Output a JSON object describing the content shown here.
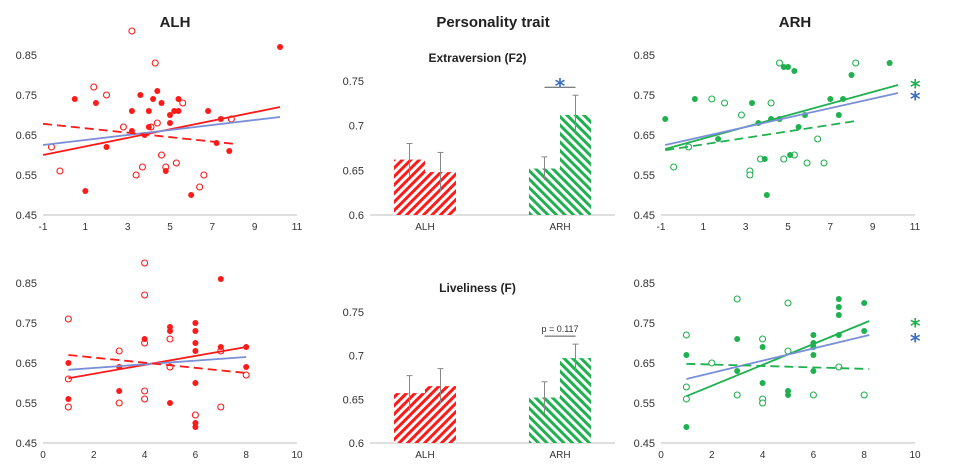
{
  "headers": {
    "left": "ALH",
    "middle": "Personality trait",
    "right": "ARH"
  },
  "colors": {
    "red": "#ff1a1a",
    "green": "#1fb04f",
    "blue": "#7b8fd8",
    "star_blue": "#3a6fc4",
    "axis": "#bfbfbf"
  },
  "chart_data": [
    {
      "id": "scatter-alh-top",
      "type": "scatter",
      "color": "red",
      "xlim": [
        -1,
        11
      ],
      "xticks": [
        -1,
        1,
        3,
        5,
        7,
        9,
        11
      ],
      "ylim": [
        0.45,
        0.85
      ],
      "yticks": [
        0.45,
        0.55,
        0.65,
        0.75,
        0.85
      ],
      "filled": [
        [
          1,
          0.51
        ],
        [
          0.5,
          0.74
        ],
        [
          1.5,
          0.73
        ],
        [
          2,
          0.62
        ],
        [
          3.2,
          0.66
        ],
        [
          3.2,
          0.71
        ],
        [
          3.6,
          0.75
        ],
        [
          3.8,
          0.65
        ],
        [
          4,
          0.67
        ],
        [
          4,
          0.71
        ],
        [
          4.2,
          0.74
        ],
        [
          4.4,
          0.76
        ],
        [
          4.6,
          0.73
        ],
        [
          4.8,
          0.56
        ],
        [
          5,
          0.68
        ],
        [
          5,
          0.7
        ],
        [
          5.2,
          0.71
        ],
        [
          5.4,
          0.74
        ],
        [
          5.4,
          0.71
        ],
        [
          6,
          0.5
        ],
        [
          6.8,
          0.71
        ],
        [
          7.2,
          0.63
        ],
        [
          7.4,
          0.69
        ],
        [
          7.8,
          0.61
        ],
        [
          10.2,
          0.87
        ]
      ],
      "open": [
        [
          -0.6,
          0.62
        ],
        [
          -0.2,
          0.56
        ],
        [
          1.4,
          0.77
        ],
        [
          2,
          0.75
        ],
        [
          2.8,
          0.67
        ],
        [
          3.2,
          0.91
        ],
        [
          3.4,
          0.55
        ],
        [
          3.7,
          0.57
        ],
        [
          4.1,
          0.67
        ],
        [
          4.3,
          0.83
        ],
        [
          4.4,
          0.68
        ],
        [
          4.6,
          0.6
        ],
        [
          4.8,
          0.57
        ],
        [
          5.3,
          0.58
        ],
        [
          5.6,
          0.73
        ],
        [
          6.4,
          0.52
        ],
        [
          6.6,
          0.55
        ],
        [
          7.9,
          0.69
        ]
      ],
      "fits": [
        {
          "color": "red",
          "style": "solid",
          "x": [
            -1,
            10.2
          ],
          "y": [
            0.6,
            0.72
          ]
        },
        {
          "color": "blue",
          "style": "solid",
          "x": [
            -1,
            10.2
          ],
          "y": [
            0.625,
            0.695
          ]
        },
        {
          "color": "red",
          "style": "dashed",
          "x": [
            -1,
            8
          ],
          "y": [
            0.678,
            0.628
          ]
        }
      ]
    },
    {
      "id": "bar-extraversion",
      "type": "bar",
      "title": "Extraversion (F2)",
      "groups": [
        "ALH",
        "ARH"
      ],
      "ylim": [
        0.6,
        0.76
      ],
      "yticks": [
        0.6,
        0.65,
        0.7,
        0.75
      ],
      "series": [
        {
          "color": "red",
          "group": "ALH",
          "values": [
            0.662,
            0.648
          ],
          "errors": [
            0.018,
            0.022
          ]
        },
        {
          "color": "green",
          "group": "ARH",
          "values": [
            0.652,
            0.712
          ],
          "errors": [
            0.013,
            0.022
          ]
        }
      ],
      "annotation": {
        "group": "ARH",
        "label": "*",
        "color": "star_blue"
      }
    },
    {
      "id": "scatter-arh-top",
      "type": "scatter",
      "color": "green",
      "xlim": [
        -1,
        11
      ],
      "xticks": [
        -1,
        1,
        3,
        5,
        7,
        9,
        11
      ],
      "ylim": [
        0.45,
        0.85
      ],
      "yticks": [
        0.45,
        0.55,
        0.65,
        0.75,
        0.85
      ],
      "filled": [
        [
          -0.8,
          0.69
        ],
        [
          0.6,
          0.74
        ],
        [
          1.7,
          0.64
        ],
        [
          3.3,
          0.73
        ],
        [
          3.6,
          0.68
        ],
        [
          3.9,
          0.59
        ],
        [
          4,
          0.5
        ],
        [
          4.2,
          0.69
        ],
        [
          4.6,
          0.69
        ],
        [
          4.8,
          0.82
        ],
        [
          5,
          0.82
        ],
        [
          5.1,
          0.6
        ],
        [
          5.3,
          0.81
        ],
        [
          5.5,
          0.67
        ],
        [
          5.8,
          0.7
        ],
        [
          7,
          0.74
        ],
        [
          7.4,
          0.7
        ],
        [
          7.6,
          0.74
        ],
        [
          8,
          0.8
        ],
        [
          9.8,
          0.83
        ]
      ],
      "open": [
        [
          -0.4,
          0.57
        ],
        [
          0.3,
          0.62
        ],
        [
          1.4,
          0.74
        ],
        [
          2,
          0.73
        ],
        [
          2.8,
          0.7
        ],
        [
          3.2,
          0.56
        ],
        [
          3.2,
          0.55
        ],
        [
          3.7,
          0.59
        ],
        [
          4.2,
          0.73
        ],
        [
          4.6,
          0.83
        ],
        [
          4.8,
          0.59
        ],
        [
          5.3,
          0.6
        ],
        [
          5.9,
          0.58
        ],
        [
          6.4,
          0.64
        ],
        [
          6.7,
          0.58
        ],
        [
          8.2,
          0.83
        ]
      ],
      "fits": [
        {
          "color": "green",
          "style": "solid",
          "x": [
            -0.8,
            10.2
          ],
          "y": [
            0.615,
            0.775
          ]
        },
        {
          "color": "blue",
          "style": "solid",
          "x": [
            -0.8,
            10.2
          ],
          "y": [
            0.625,
            0.755
          ]
        },
        {
          "color": "green",
          "style": "dashed",
          "x": [
            -0.8,
            8.2
          ],
          "y": [
            0.612,
            0.685
          ]
        }
      ],
      "stars": [
        {
          "color": "green",
          "y": 0.785
        },
        {
          "color": "star_blue",
          "y": 0.755
        }
      ]
    },
    {
      "id": "scatter-alh-bottom",
      "type": "scatter",
      "color": "red",
      "xlim": [
        0,
        10
      ],
      "xticks": [
        0,
        2,
        4,
        6,
        8,
        10
      ],
      "ylim": [
        0.45,
        0.85
      ],
      "yticks": [
        0.45,
        0.55,
        0.65,
        0.75,
        0.85
      ],
      "filled": [
        [
          1,
          0.65
        ],
        [
          1,
          0.56
        ],
        [
          3,
          0.64
        ],
        [
          3,
          0.58
        ],
        [
          4,
          0.71
        ],
        [
          5,
          0.74
        ],
        [
          5,
          0.73
        ],
        [
          5,
          0.55
        ],
        [
          6,
          0.75
        ],
        [
          6,
          0.73
        ],
        [
          6,
          0.7
        ],
        [
          6,
          0.68
        ],
        [
          6,
          0.6
        ],
        [
          6,
          0.5
        ],
        [
          6,
          0.49
        ],
        [
          7,
          0.86
        ],
        [
          7,
          0.69
        ],
        [
          8,
          0.69
        ],
        [
          8,
          0.64
        ]
      ],
      "open": [
        [
          1,
          0.76
        ],
        [
          1,
          0.61
        ],
        [
          1,
          0.54
        ],
        [
          3,
          0.68
        ],
        [
          3,
          0.55
        ],
        [
          4,
          0.9
        ],
        [
          4,
          0.82
        ],
        [
          4,
          0.7
        ],
        [
          4,
          0.58
        ],
        [
          4,
          0.56
        ],
        [
          5,
          0.71
        ],
        [
          5,
          0.64
        ],
        [
          6,
          0.52
        ],
        [
          7,
          0.54
        ],
        [
          7,
          0.68
        ],
        [
          8,
          0.62
        ]
      ],
      "fits": [
        {
          "color": "red",
          "style": "solid",
          "x": [
            1,
            8
          ],
          "y": [
            0.612,
            0.69
          ]
        },
        {
          "color": "blue",
          "style": "solid",
          "x": [
            1,
            8
          ],
          "y": [
            0.633,
            0.665
          ]
        },
        {
          "color": "red",
          "style": "dashed",
          "x": [
            1,
            8
          ],
          "y": [
            0.67,
            0.625
          ]
        }
      ]
    },
    {
      "id": "bar-liveliness",
      "type": "bar",
      "title": "Liveliness (F)",
      "groups": [
        "ALH",
        "ARH"
      ],
      "ylim": [
        0.6,
        0.76
      ],
      "yticks": [
        0.6,
        0.65,
        0.7,
        0.75
      ],
      "series": [
        {
          "color": "red",
          "group": "ALH",
          "values": [
            0.657,
            0.665
          ],
          "errors": [
            0.02,
            0.02
          ]
        },
        {
          "color": "green",
          "group": "ARH",
          "values": [
            0.652,
            0.697
          ],
          "errors": [
            0.018,
            0.016
          ]
        }
      ],
      "annotation": {
        "group": "ARH",
        "label": "p = 0.117",
        "color": "axis"
      }
    },
    {
      "id": "scatter-arh-bottom",
      "type": "scatter",
      "color": "green",
      "xlim": [
        0,
        10
      ],
      "xticks": [
        0,
        2,
        4,
        6,
        8,
        10
      ],
      "ylim": [
        0.45,
        0.85
      ],
      "yticks": [
        0.45,
        0.55,
        0.65,
        0.75,
        0.85
      ],
      "filled": [
        [
          1,
          0.67
        ],
        [
          1,
          0.49
        ],
        [
          3,
          0.71
        ],
        [
          3,
          0.63
        ],
        [
          4,
          0.69
        ],
        [
          4,
          0.6
        ],
        [
          5,
          0.58
        ],
        [
          5,
          0.57
        ],
        [
          6,
          0.72
        ],
        [
          6,
          0.7
        ],
        [
          6,
          0.69
        ],
        [
          6,
          0.67
        ],
        [
          6,
          0.63
        ],
        [
          7,
          0.81
        ],
        [
          7,
          0.79
        ],
        [
          7,
          0.77
        ],
        [
          7,
          0.72
        ],
        [
          8,
          0.8
        ],
        [
          8,
          0.73
        ]
      ],
      "open": [
        [
          1,
          0.72
        ],
        [
          1,
          0.59
        ],
        [
          1,
          0.56
        ],
        [
          2,
          0.65
        ],
        [
          3,
          0.81
        ],
        [
          3,
          0.57
        ],
        [
          4,
          0.71
        ],
        [
          4,
          0.56
        ],
        [
          4,
          0.55
        ],
        [
          5,
          0.8
        ],
        [
          5,
          0.68
        ],
        [
          6,
          0.57
        ],
        [
          7,
          0.64
        ],
        [
          8,
          0.57
        ]
      ],
      "fits": [
        {
          "color": "green",
          "style": "solid",
          "x": [
            1,
            8.2
          ],
          "y": [
            0.567,
            0.755
          ]
        },
        {
          "color": "blue",
          "style": "solid",
          "x": [
            1,
            8.2
          ],
          "y": [
            0.61,
            0.72
          ]
        },
        {
          "color": "green",
          "style": "dashed",
          "x": [
            1,
            8.2
          ],
          "y": [
            0.648,
            0.635
          ]
        }
      ],
      "stars": [
        {
          "color": "green",
          "y": 0.757
        },
        {
          "color": "star_blue",
          "y": 0.72
        }
      ]
    }
  ]
}
